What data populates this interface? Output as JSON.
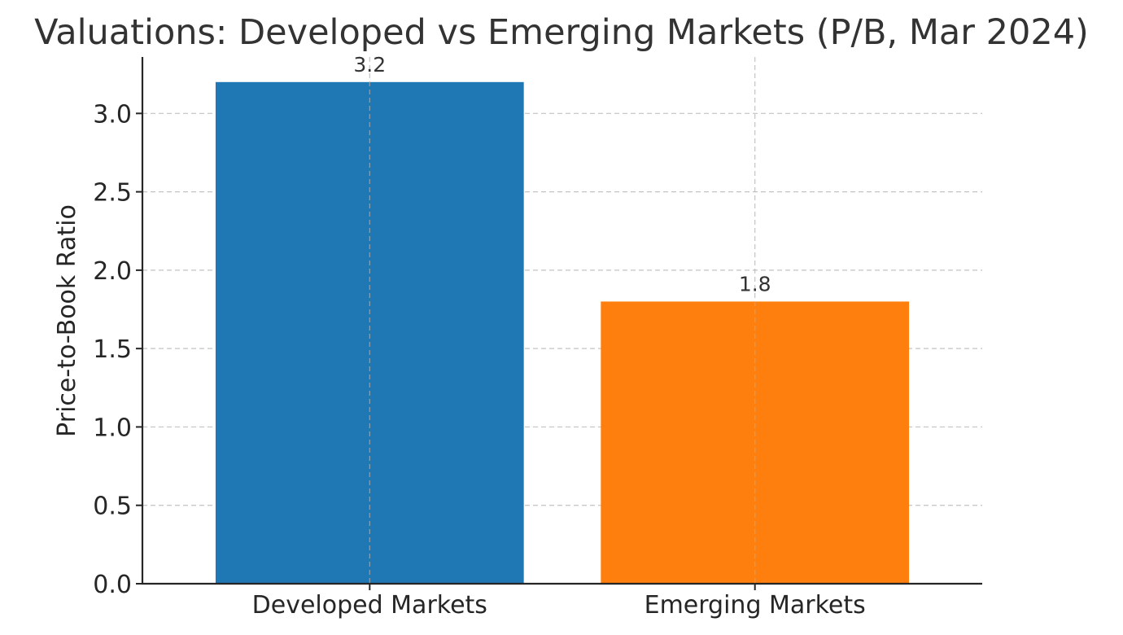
{
  "chart_data": {
    "type": "bar",
    "title": "Valuations: Developed vs Emerging Markets (P/B, Mar 2024)",
    "xlabel": "",
    "ylabel": "Price-to-Book Ratio",
    "categories": [
      "Developed Markets",
      "Emerging Markets"
    ],
    "values": [
      3.2,
      1.8
    ],
    "data_labels": [
      "3.2",
      "1.8"
    ],
    "colors": [
      "#1f77b4",
      "#ff7f0e"
    ],
    "ylim": [
      0,
      3.36
    ],
    "yticks": [
      0,
      0.5,
      1,
      1.5,
      2,
      2.5,
      3
    ],
    "ytick_labels": [
      "0.0",
      "0.5",
      "1.0",
      "1.5",
      "2.0",
      "2.5",
      "3.0"
    ],
    "grid": true,
    "grid_style": "dashed",
    "legend": "none"
  }
}
